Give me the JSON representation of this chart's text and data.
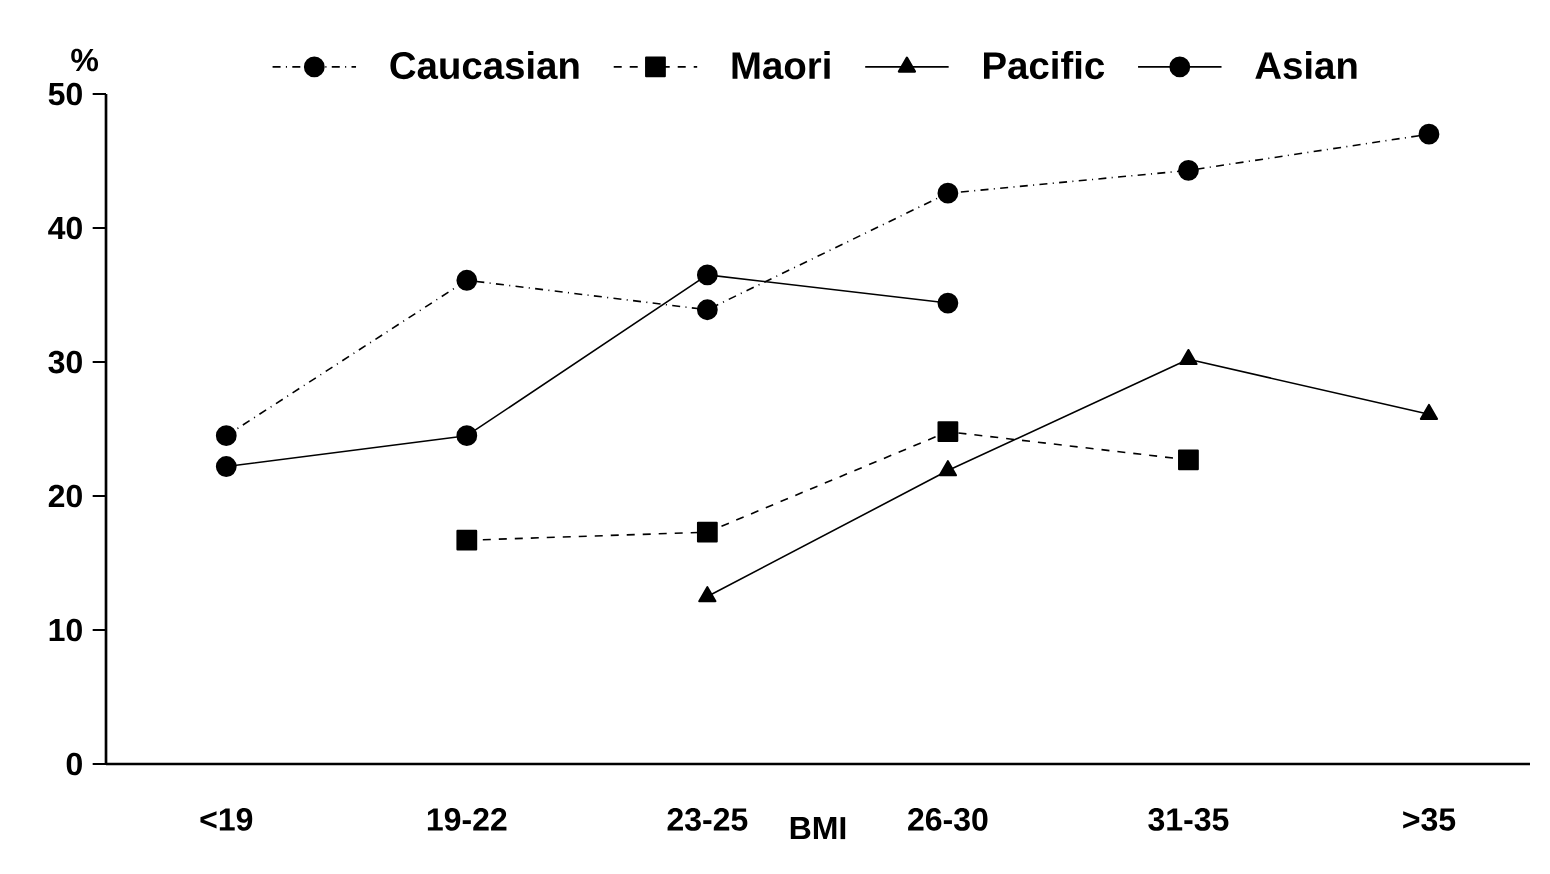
{
  "chart_data": {
    "type": "line",
    "xlabel": "BMI",
    "ylabel": "%",
    "categories": [
      "<19",
      "19-22",
      "23-25",
      "26-30",
      "31-35",
      ">35"
    ],
    "ylim": [
      0,
      50
    ],
    "yticks": [
      0,
      10,
      20,
      30,
      40,
      50
    ],
    "grid": false,
    "legend": "top",
    "series": [
      {
        "name": "Caucasian",
        "color": "#000000",
        "marker": "circle",
        "line_style": "dashdot",
        "values": [
          24.5,
          36.1,
          33.9,
          42.6,
          44.3,
          47.0
        ]
      },
      {
        "name": "Maori",
        "color": "#000000",
        "marker": "square",
        "line_style": "dashed",
        "values": [
          null,
          16.7,
          17.3,
          24.8,
          22.7,
          null
        ]
      },
      {
        "name": "Pacific",
        "color": "#000000",
        "marker": "triangle",
        "line_style": "solid",
        "values": [
          null,
          null,
          12.5,
          21.9,
          30.2,
          26.1
        ]
      },
      {
        "name": "Asian",
        "color": "#000000",
        "marker": "circle",
        "line_style": "solid",
        "values": [
          22.2,
          24.5,
          36.5,
          34.4,
          null,
          null
        ]
      }
    ]
  }
}
